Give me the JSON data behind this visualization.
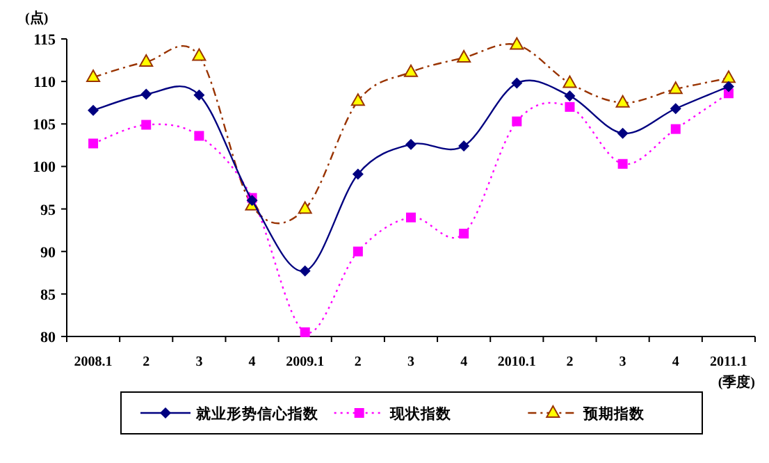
{
  "chart_data": {
    "type": "line",
    "ylabel": "(点)",
    "xlabel": "(季度)",
    "categories": [
      "2008.1",
      "2",
      "3",
      "4",
      "2009.1",
      "2",
      "3",
      "4",
      "2010.1",
      "2",
      "3",
      "4",
      "2011.1"
    ],
    "ylim": [
      80,
      115
    ],
    "yticks": [
      80,
      85,
      90,
      95,
      100,
      105,
      110,
      115
    ],
    "grid": false,
    "legend": "bottom",
    "series": [
      {
        "name": "就业形势信心指数",
        "color": "#000080",
        "marker": "diamond",
        "line_style": "solid",
        "values": [
          106.6,
          108.5,
          108.4,
          96.0,
          87.7,
          99.1,
          102.6,
          102.4,
          109.8,
          108.3,
          103.9,
          106.8,
          109.4
        ]
      },
      {
        "name": "现状指数",
        "color": "#ff00ff",
        "marker": "square",
        "line_style": "dotted",
        "values": [
          102.7,
          104.9,
          103.6,
          96.3,
          80.5,
          90.0,
          94.0,
          92.1,
          105.3,
          107.0,
          100.3,
          104.4,
          108.6
        ]
      },
      {
        "name": "预期指数",
        "color": "#993300",
        "marker": "triangle",
        "line_style": "dashed",
        "values": [
          110.5,
          112.3,
          113.0,
          95.4,
          95.0,
          107.7,
          111.1,
          112.8,
          114.3,
          109.8,
          107.5,
          109.1,
          110.4
        ]
      }
    ]
  }
}
